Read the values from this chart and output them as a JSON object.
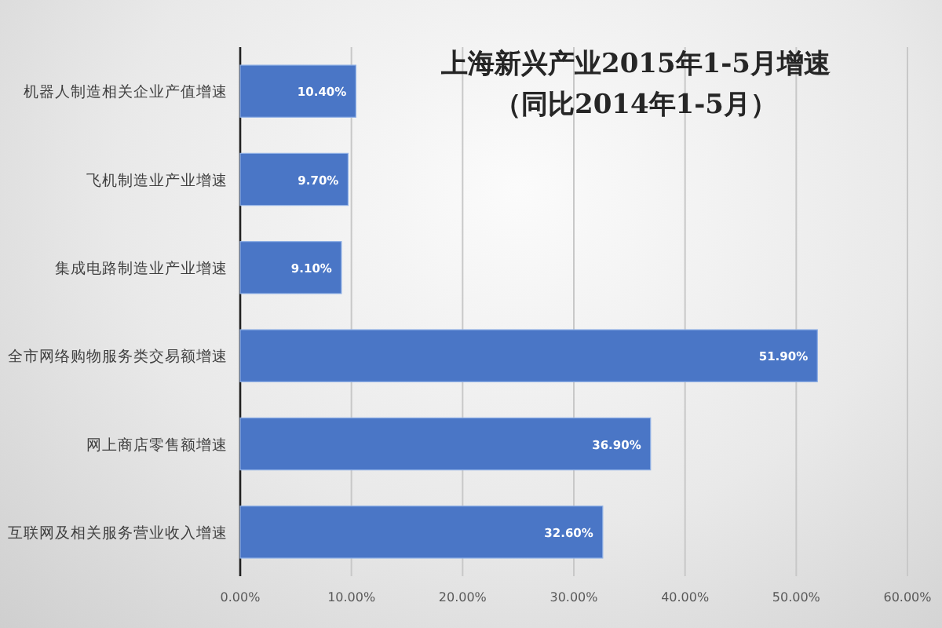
{
  "chart_data": {
    "type": "bar",
    "orientation": "horizontal",
    "title": "上海新兴产业2015年1-5月增速",
    "subtitle": "（同比2014年1-5月）",
    "categories": [
      "机器人制造相关企业产值增速",
      "飞机制造业产业增速",
      "集成电路制造业产业增速",
      "全市网络购物服务类交易额增速",
      "网上商店零售额增速",
      "互联网及相关服务营业收入增速"
    ],
    "values": [
      10.4,
      9.7,
      9.1,
      51.9,
      36.9,
      32.6
    ],
    "value_labels": [
      "10.40%",
      "9.70%",
      "9.10%",
      "51.90%",
      "36.90%",
      "32.60%"
    ],
    "color": "#4a76c6",
    "xlim": [
      0,
      60
    ],
    "xticks": [
      {
        "value": 0,
        "label": "0.00%"
      },
      {
        "value": 10,
        "label": "10.00%"
      },
      {
        "value": 20,
        "label": "20.00%"
      },
      {
        "value": 30,
        "label": "30.00%"
      },
      {
        "value": 40,
        "label": "40.00%"
      },
      {
        "value": 50,
        "label": "50.00%"
      },
      {
        "value": 60,
        "label": "60.00%"
      }
    ],
    "grid": "x"
  }
}
